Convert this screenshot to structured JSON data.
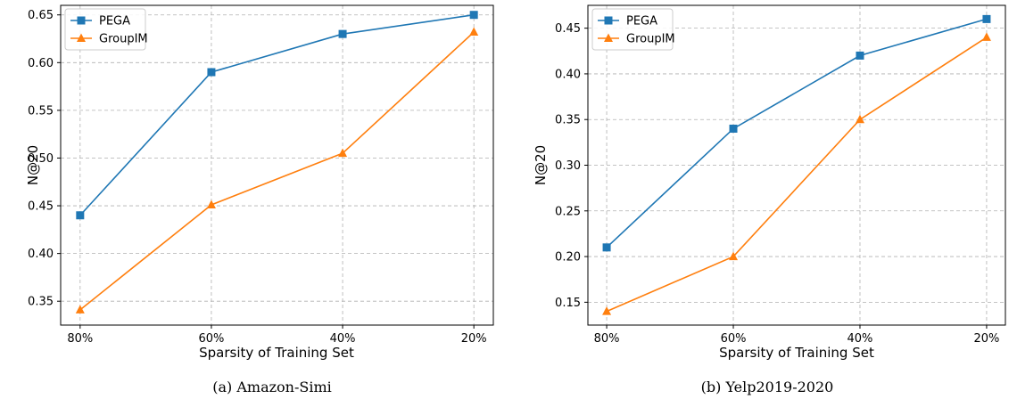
{
  "chart_data": [
    {
      "type": "line",
      "caption": "(a) Amazon-Simi",
      "xlabel": "Sparsity of Training Set",
      "ylabel": "N@20",
      "categories": [
        "80%",
        "60%",
        "40%",
        "20%"
      ],
      "ylim": [
        0.325,
        0.66
      ],
      "yticks": [
        0.35,
        0.4,
        0.45,
        0.5,
        0.55,
        0.6,
        0.65
      ],
      "grid": true,
      "legend": "top-left",
      "series": [
        {
          "name": "PEGA",
          "values": [
            0.44,
            0.59,
            0.63,
            0.65
          ],
          "color": "#1f77b4",
          "marker": "square"
        },
        {
          "name": "GroupIM",
          "values": [
            0.341,
            0.451,
            0.505,
            0.632
          ],
          "color": "#ff7f0e",
          "marker": "triangle"
        }
      ]
    },
    {
      "type": "line",
      "caption": "(b) Yelp2019-2020",
      "xlabel": "Sparsity of Training Set",
      "ylabel": "N@20",
      "categories": [
        "80%",
        "60%",
        "40%",
        "20%"
      ],
      "ylim": [
        0.125,
        0.475
      ],
      "yticks": [
        0.15,
        0.2,
        0.25,
        0.3,
        0.35,
        0.4,
        0.45
      ],
      "grid": true,
      "legend": "top-left",
      "series": [
        {
          "name": "PEGA",
          "values": [
            0.21,
            0.34,
            0.42,
            0.46
          ],
          "color": "#1f77b4",
          "marker": "square"
        },
        {
          "name": "GroupIM",
          "values": [
            0.14,
            0.2,
            0.35,
            0.44
          ],
          "color": "#ff7f0e",
          "marker": "triangle"
        }
      ]
    }
  ]
}
